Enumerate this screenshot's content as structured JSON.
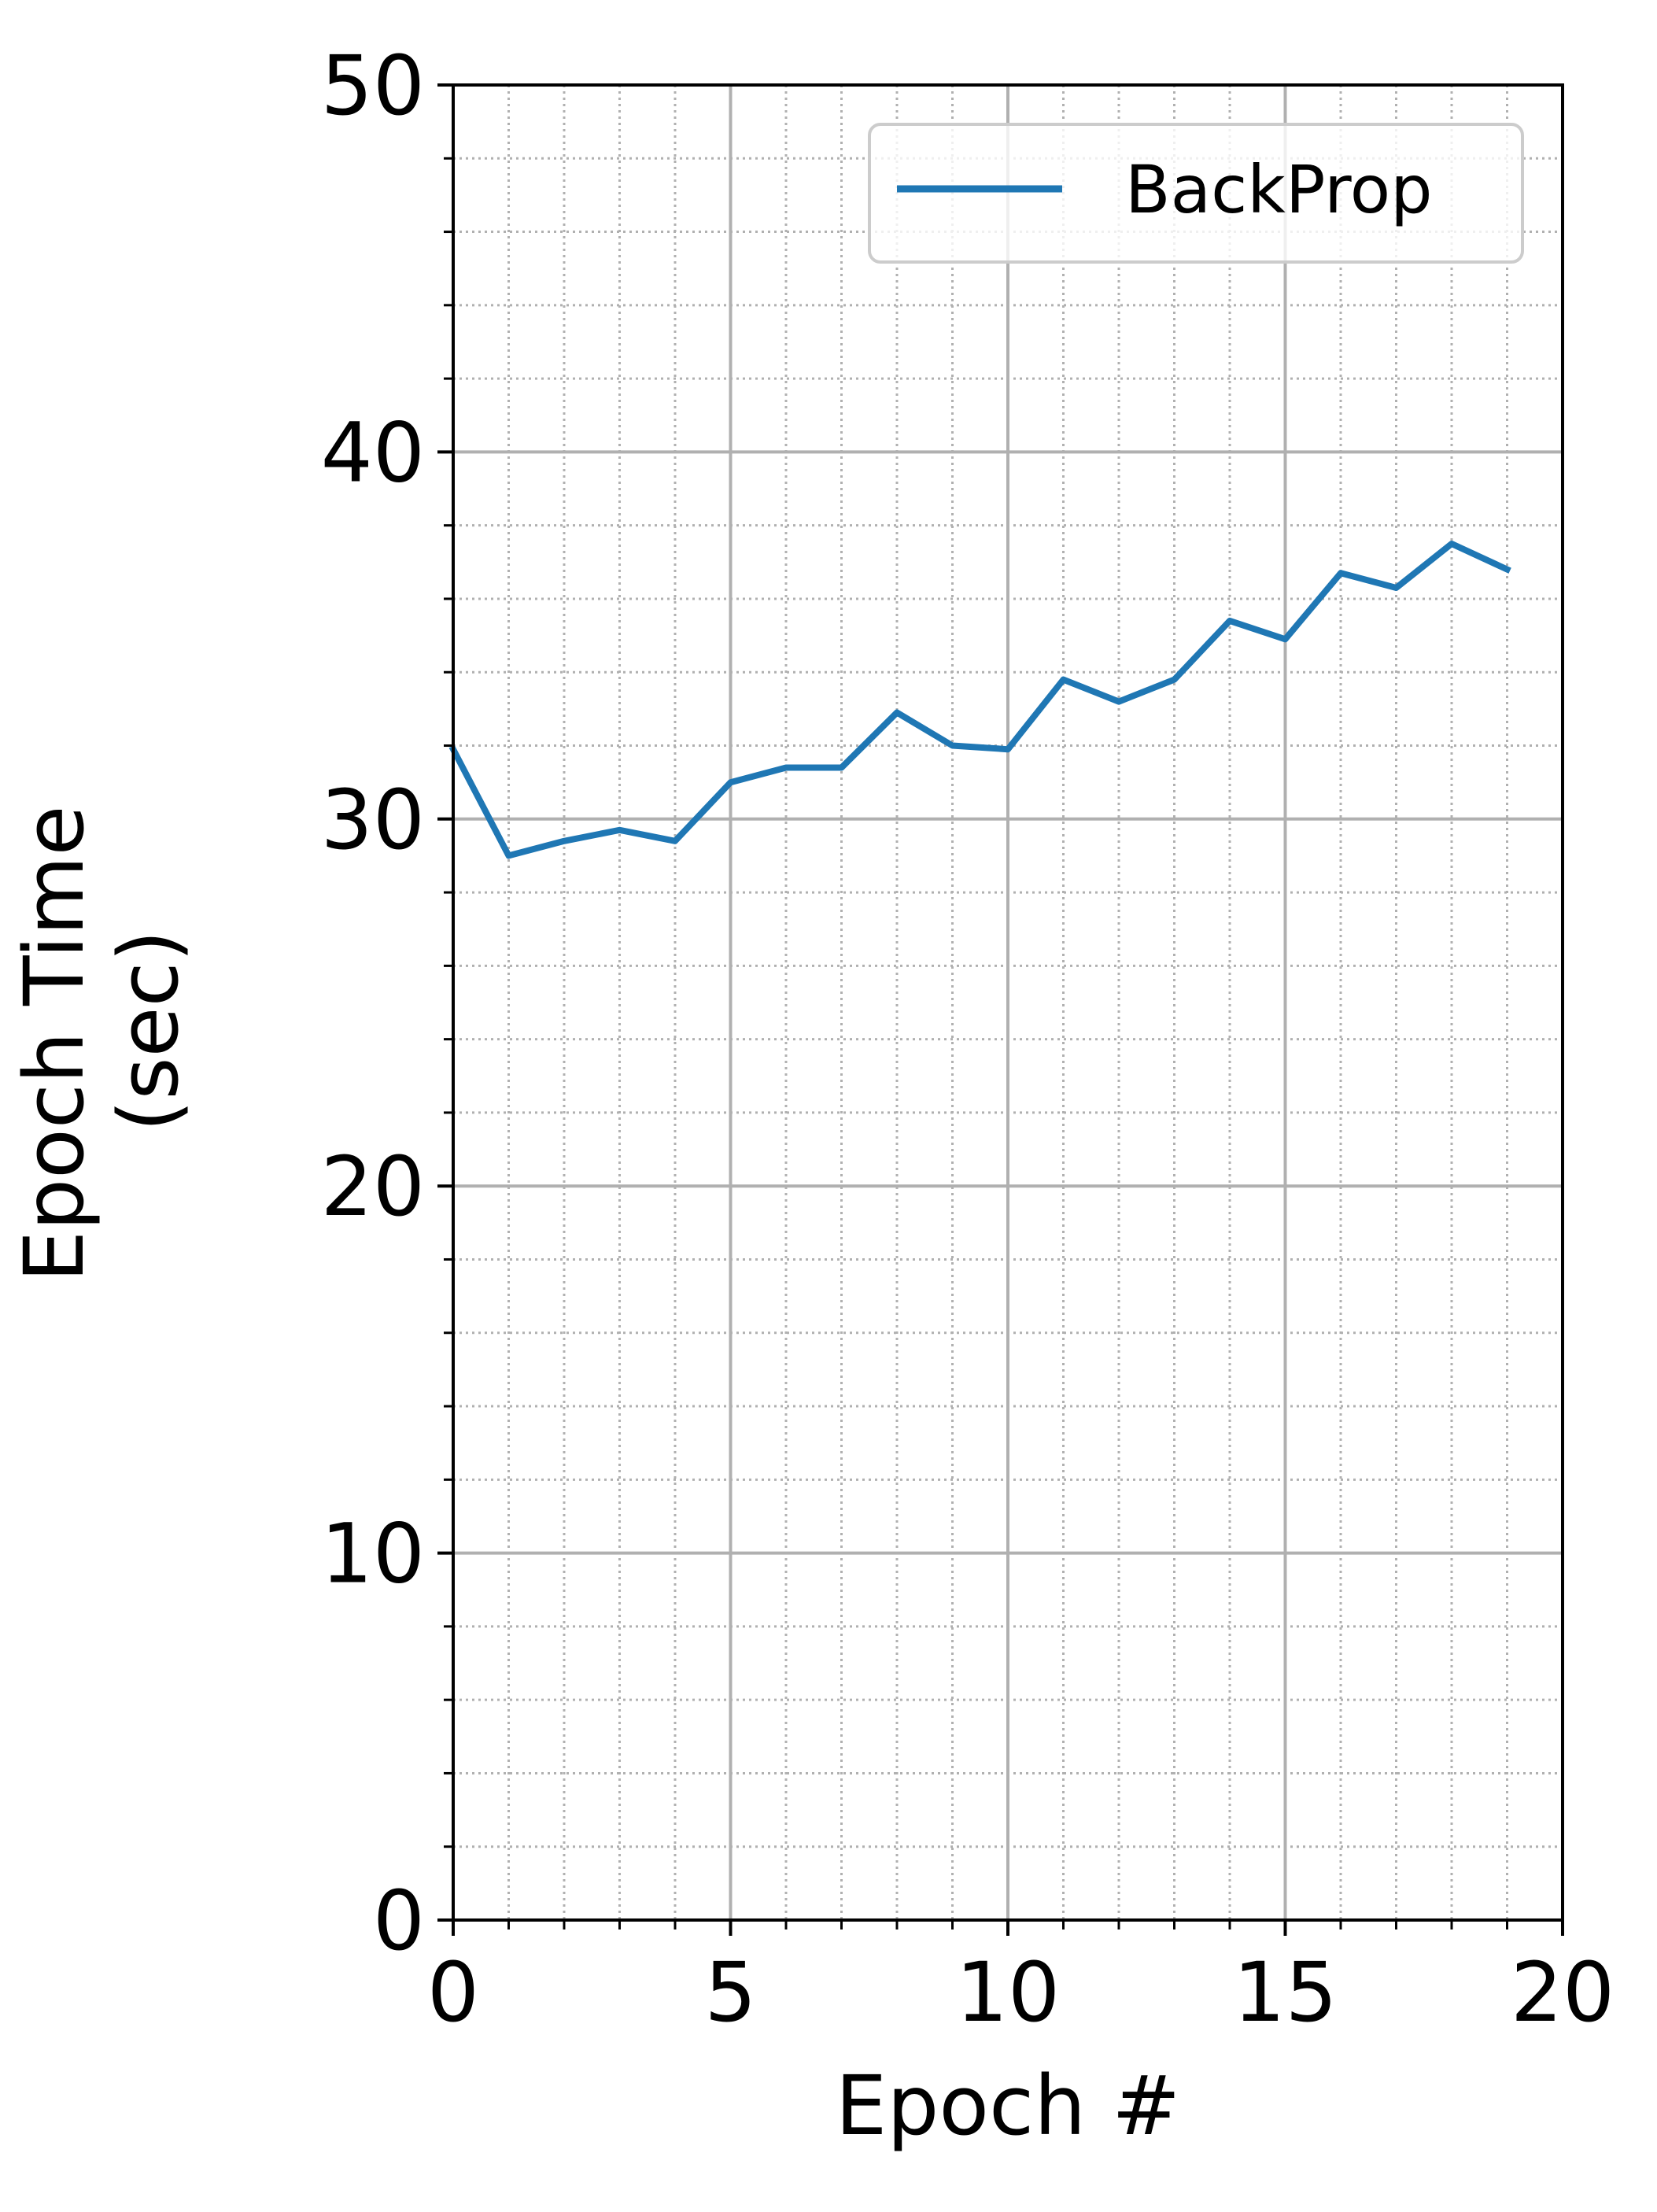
{
  "chart_data": {
    "type": "line",
    "title": "",
    "xlabel": "Epoch #",
    "ylabel": [
      "Epoch Time",
      "(sec)"
    ],
    "xlim": [
      0,
      20
    ],
    "ylim": [
      0,
      50
    ],
    "x_ticks": [
      0,
      5,
      10,
      15,
      20
    ],
    "y_ticks": [
      0,
      10,
      20,
      30,
      40,
      50
    ],
    "x_minor_step": 1,
    "y_minor_step": 2,
    "grid": true,
    "legend_position": "top-right",
    "series": [
      {
        "name": "BackProp",
        "color": "#1f77b4",
        "x": [
          0,
          1,
          2,
          3,
          4,
          5,
          6,
          7,
          8,
          9,
          10,
          11,
          12,
          13,
          14,
          15,
          16,
          17,
          18,
          19
        ],
        "y": [
          31.9,
          29.0,
          29.4,
          29.7,
          29.4,
          31.0,
          31.4,
          31.4,
          32.9,
          32.0,
          31.9,
          33.8,
          33.2,
          33.8,
          35.4,
          34.9,
          36.7,
          36.3,
          37.5,
          36.8
        ]
      }
    ]
  }
}
